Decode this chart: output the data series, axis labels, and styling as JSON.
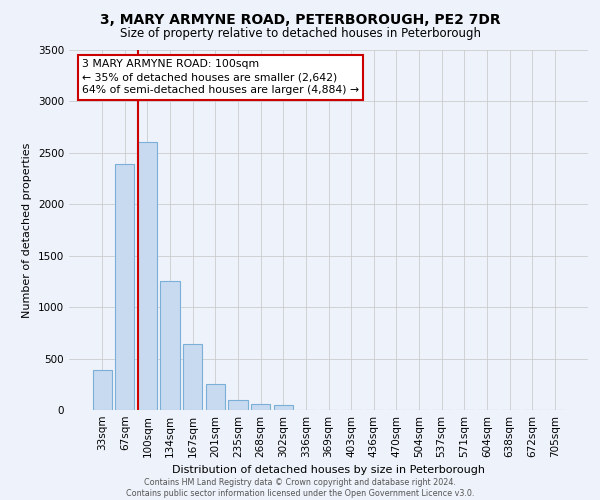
{
  "title": "3, MARY ARMYNE ROAD, PETERBOROUGH, PE2 7DR",
  "subtitle": "Size of property relative to detached houses in Peterborough",
  "xlabel": "Distribution of detached houses by size in Peterborough",
  "ylabel": "Number of detached properties",
  "categories": [
    "33sqm",
    "67sqm",
    "100sqm",
    "134sqm",
    "167sqm",
    "201sqm",
    "235sqm",
    "268sqm",
    "302sqm",
    "336sqm",
    "369sqm",
    "403sqm",
    "436sqm",
    "470sqm",
    "504sqm",
    "537sqm",
    "571sqm",
    "604sqm",
    "638sqm",
    "672sqm",
    "705sqm"
  ],
  "values": [
    390,
    2390,
    2610,
    1250,
    640,
    250,
    100,
    55,
    45,
    0,
    0,
    0,
    0,
    0,
    0,
    0,
    0,
    0,
    0,
    0,
    0
  ],
  "bar_color": "#c8daf0",
  "bar_edge_color": "#7ab0d8",
  "red_line_index": 2,
  "ylim": [
    0,
    3500
  ],
  "yticks": [
    0,
    500,
    1000,
    1500,
    2000,
    2500,
    3000,
    3500
  ],
  "annotation_text": "3 MARY ARMYNE ROAD: 100sqm\n← 35% of detached houses are smaller (2,642)\n64% of semi-detached houses are larger (4,884) →",
  "annotation_box_facecolor": "#ffffff",
  "annotation_box_edgecolor": "#cc0000",
  "red_line_color": "#cc0000",
  "footer_text": "Contains HM Land Registry data © Crown copyright and database right 2024.\nContains public sector information licensed under the Open Government Licence v3.0.",
  "grid_color": "#cccccc",
  "background_color": "#eef2fa",
  "title_fontsize": 10,
  "subtitle_fontsize": 8.5,
  "axis_label_fontsize": 8,
  "tick_fontsize": 7.5
}
